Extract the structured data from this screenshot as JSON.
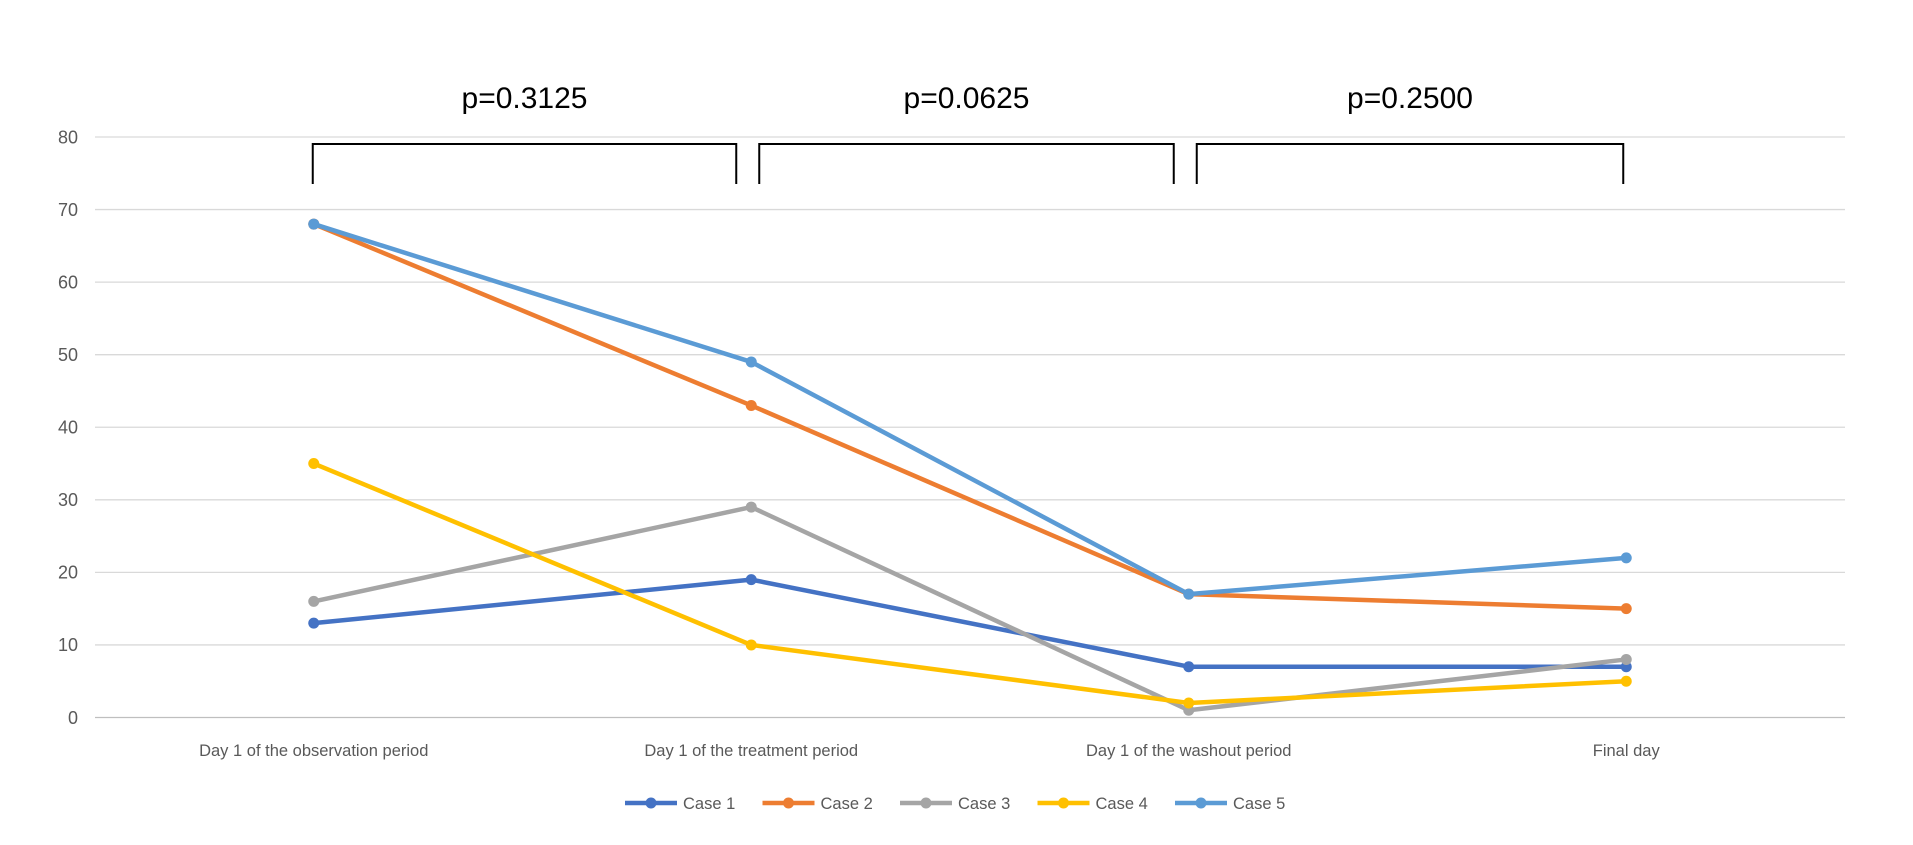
{
  "chart_data": {
    "type": "line",
    "title": "",
    "xlabel": "",
    "ylabel": "",
    "categories": [
      "Day 1 of the observation period",
      "Day 1 of the treatment period",
      "Day 1 of the washout period",
      "Final day"
    ],
    "series": [
      {
        "name": "Case 1",
        "color": "#4472C4",
        "values": [
          13,
          19,
          7,
          7
        ]
      },
      {
        "name": "Case 2",
        "color": "#ED7D31",
        "values": [
          68,
          43,
          17,
          15
        ]
      },
      {
        "name": "Case 3",
        "color": "#A5A5A5",
        "values": [
          16,
          29,
          1,
          8
        ]
      },
      {
        "name": "Case 4",
        "color": "#FFC000",
        "values": [
          35,
          10,
          2,
          5
        ]
      },
      {
        "name": "Case 5",
        "color": "#5B9BD5",
        "values": [
          68,
          49,
          17,
          22
        ]
      }
    ],
    "ylim": [
      0,
      80
    ],
    "ytick_step": 10,
    "yticks": [
      "0",
      "10",
      "20",
      "30",
      "40",
      "50",
      "60",
      "70",
      "80"
    ],
    "grid": true,
    "legend_position": "bottom-center",
    "legend_entries": [
      "Case 1",
      "Case 2",
      "Case 3",
      "Case 4",
      "Case 5"
    ],
    "annotations": [
      {
        "label": "p=0.3125",
        "from_category": 0,
        "to_category": 1
      },
      {
        "label": "p=0.0625",
        "from_category": 1,
        "to_category": 2
      },
      {
        "label": "p=0.2500",
        "from_category": 2,
        "to_category": 3
      }
    ]
  },
  "colors": {
    "background": "#ffffff",
    "gridline": "#D9D9D9",
    "axis_line": "#BFBFBF",
    "axis_text": "#595959",
    "legend_text": "#595959",
    "annotation_text": "#000000",
    "bracket_line": "#000000"
  }
}
